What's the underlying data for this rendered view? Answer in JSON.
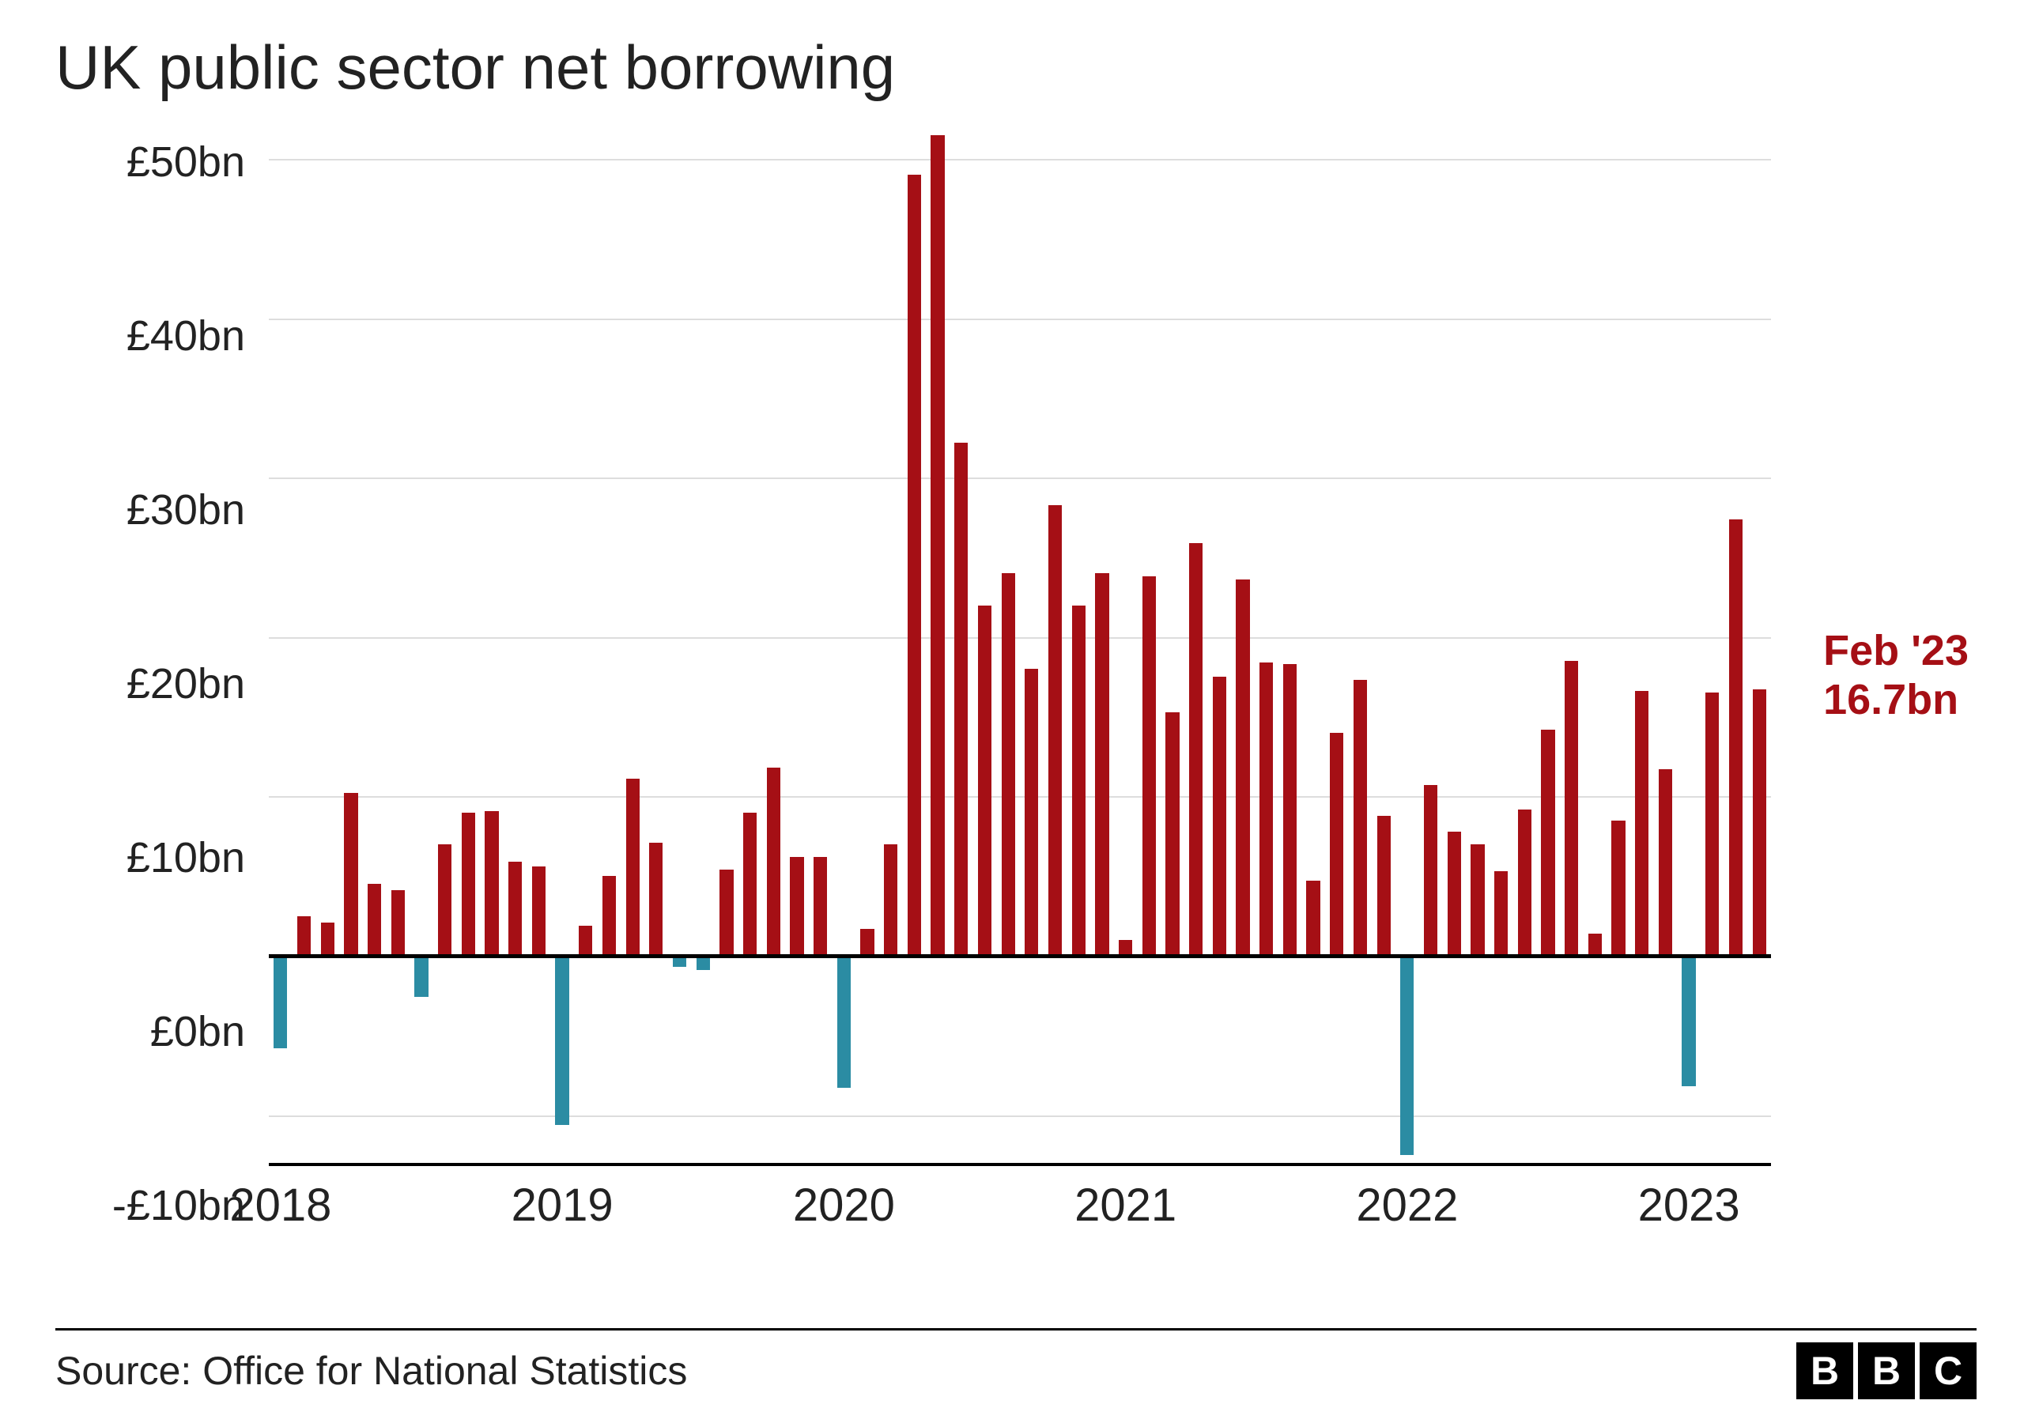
{
  "chart": {
    "type": "bar",
    "title": "UK public sector net borrowing",
    "ylim": [
      -13,
      52
    ],
    "y_ticks": [
      -10,
      0,
      10,
      20,
      30,
      40,
      50
    ],
    "y_tick_labels": [
      "-£10bn",
      "£0bn",
      "£10bn",
      "£20bn",
      "£30bn",
      "£40bn",
      "£50bn"
    ],
    "gridline_color": "#dddddd",
    "zero_line_color": "#000000",
    "background_color": "#ffffff",
    "title_fontsize": 78,
    "axis_label_fontsize": 54,
    "positive_color": "#a50f15",
    "negative_color": "#2b8ca3",
    "bar_width": 0.58,
    "x_years": [
      2018,
      2019,
      2020,
      2021,
      2022,
      2023
    ],
    "x_year_labels": [
      "2018",
      "2019",
      "2020",
      "2021",
      "2022",
      "2023"
    ],
    "values": [
      -5.8,
      2.5,
      2.1,
      10.2,
      4.5,
      4.1,
      -2.6,
      7.0,
      9.0,
      9.1,
      5.9,
      5.6,
      -10.6,
      1.9,
      5.0,
      11.1,
      7.1,
      -0.7,
      -0.9,
      5.4,
      9.0,
      11.8,
      6.2,
      6.2,
      -8.3,
      1.7,
      7.0,
      49.0,
      51.5,
      32.2,
      22.0,
      24.0,
      18.0,
      28.3,
      22.0,
      24.0,
      1.0,
      23.8,
      15.3,
      25.9,
      17.5,
      23.6,
      18.4,
      18.3,
      4.7,
      14.0,
      17.3,
      8.8,
      -12.5,
      10.7,
      7.8,
      7.0,
      5.3,
      9.2,
      14.2,
      18.5,
      1.4,
      8.5,
      16.6,
      11.7,
      -8.2,
      16.5,
      27.4,
      16.7
    ],
    "callout": {
      "label_line1": "Feb '23",
      "label_line2": "16.7bn",
      "color": "#a50f15"
    }
  },
  "footer": {
    "source": "Source: Office for National Statistics",
    "logo_letters": [
      "B",
      "B",
      "C"
    ]
  }
}
